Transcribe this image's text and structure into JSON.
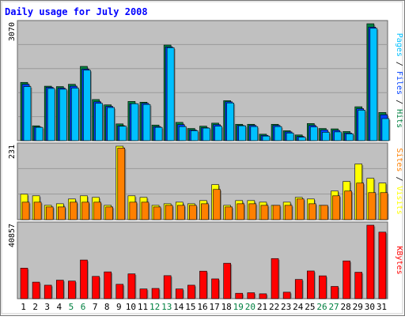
{
  "colors": {
    "background": "#ffffff",
    "plot_bg": "#c0c0c0",
    "grid": "#999999",
    "title": "#0000ff",
    "hits": "#008040",
    "files": "#0040ff",
    "pages": "#00c0ff",
    "visits": "#ffff00",
    "sites": "#ff8000",
    "kbytes": "#ff0000",
    "weekend": "#008040",
    "weekday": "#000000"
  },
  "chart_data": {
    "type": "bar",
    "title": "Daily usage for July 2008",
    "days": [
      "1",
      "2",
      "3",
      "4",
      "5",
      "6",
      "7",
      "8",
      "9",
      "10",
      "11",
      "12",
      "13",
      "14",
      "15",
      "16",
      "17",
      "18",
      "19",
      "20",
      "21",
      "22",
      "23",
      "24",
      "25",
      "26",
      "27",
      "28",
      "29",
      "30",
      "31"
    ],
    "weekend_days": [
      "5",
      "6",
      "12",
      "13",
      "19",
      "20",
      "26",
      "27"
    ],
    "panels": [
      {
        "label_parts": [
          "Pages",
          "Files",
          "Hits"
        ],
        "ymax_label": "3070",
        "ymax": 3070,
        "series": [
          {
            "name": "Hits",
            "values": [
              1530,
              390,
              1430,
              1420,
              1480,
              1950,
              1080,
              940,
              440,
              1030,
              1010,
              410,
              2510,
              480,
              320,
              380,
              460,
              1050,
              430,
              430,
              170,
              430,
              260,
              150,
              450,
              320,
              310,
              240,
              890,
              3070,
              740
            ]
          },
          {
            "name": "Files",
            "values": [
              1480,
              360,
              1400,
              1380,
              1430,
              1880,
              1020,
              900,
              390,
              970,
              980,
              370,
              2460,
              420,
              280,
              340,
              420,
              1020,
              400,
              400,
              140,
              400,
              230,
              110,
              400,
              280,
              270,
              200,
              840,
              2980,
              680
            ]
          },
          {
            "name": "Pages",
            "values": [
              1420,
              350,
              1370,
              1350,
              1380,
              1850,
              980,
              870,
              380,
              970,
              950,
              350,
              2440,
              370,
              260,
              330,
              380,
              990,
              390,
              370,
              120,
              370,
              200,
              90,
              360,
              220,
              230,
              180,
              800,
              2950,
              580
            ]
          }
        ]
      },
      {
        "label_parts": [
          "Sites",
          "Visits"
        ],
        "ymax_label": "231",
        "ymax": 231,
        "series": [
          {
            "name": "Visits",
            "values": [
              80,
              75,
              45,
              50,
              65,
              75,
              70,
              45,
              231,
              75,
              70,
              45,
              50,
              55,
              50,
              60,
              110,
              45,
              60,
              60,
              55,
              45,
              55,
              70,
              65,
              45,
              90,
              120,
              175,
              130,
              115
            ]
          },
          {
            "name": "Sites",
            "values": [
              55,
              55,
              40,
              40,
              55,
              55,
              55,
              40,
              225,
              55,
              55,
              40,
              45,
              45,
              45,
              50,
              95,
              40,
              50,
              50,
              45,
              45,
              45,
              65,
              50,
              45,
              75,
              90,
              115,
              85,
              85
            ]
          }
        ]
      },
      {
        "label_parts": [
          "KBytes"
        ],
        "ymax_label": "40857",
        "ymax": 40857,
        "series": [
          {
            "name": "KBytes",
            "values": [
              17000,
              9200,
              7500,
              10300,
              9800,
              21500,
              12400,
              14900,
              8000,
              13800,
              5400,
              5700,
              12800,
              5400,
              7500,
              15300,
              11000,
              19700,
              3000,
              3300,
              2700,
              22300,
              3600,
              10700,
              15400,
              12700,
              6800,
              21000,
              14700,
              40857,
              37000
            ]
          }
        ]
      }
    ]
  }
}
